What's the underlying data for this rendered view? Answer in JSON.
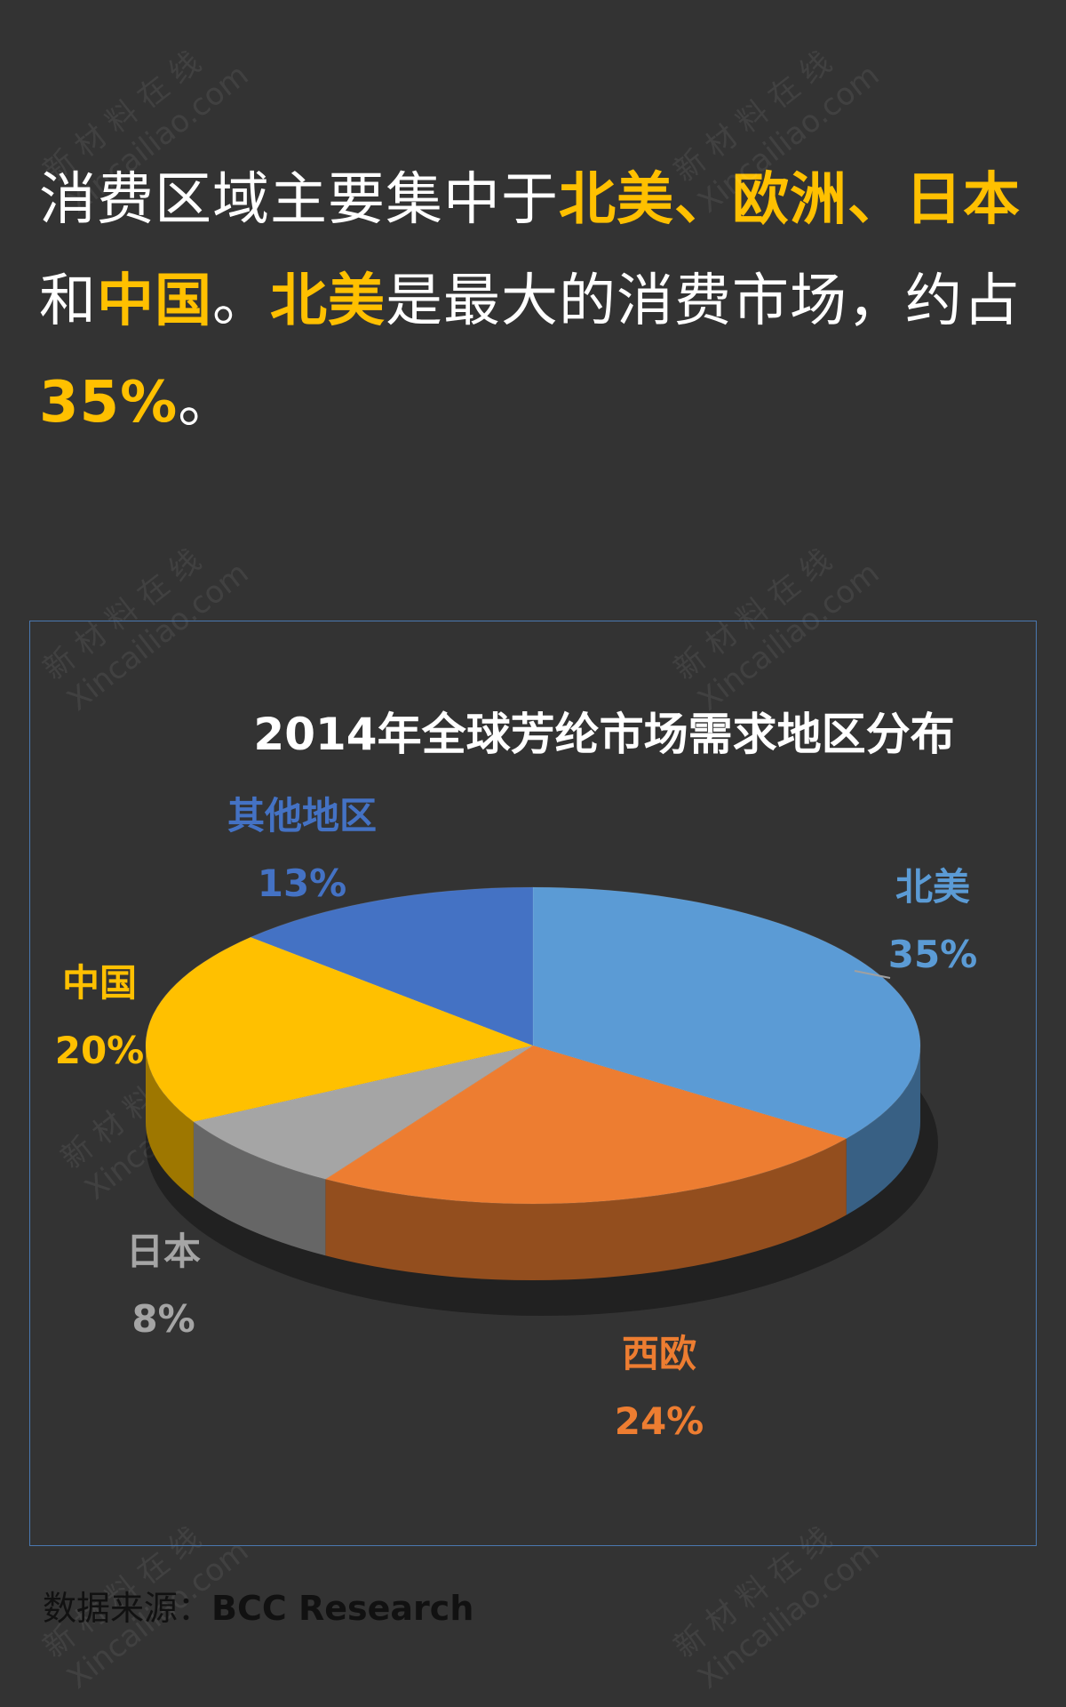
{
  "headline": {
    "seg1": "消费区域主要集中于",
    "seg2": "北美、欧洲、日本",
    "seg3": "和",
    "seg4": "中国",
    "seg5": "。",
    "seg6": "北美",
    "seg7": "是最大的消费市场，约占",
    "seg8": "35%",
    "seg9": "。"
  },
  "watermark": {
    "line1": "新 材 料 在 线",
    "line2": "Xincailiao.com"
  },
  "source": {
    "label": "数据来源：",
    "value": "BCC Research"
  },
  "chart_data": {
    "type": "pie",
    "title": "2014年全球芳纶市场需求地区分布",
    "slices": [
      {
        "name": "北美",
        "value": 35,
        "label": "35%",
        "color": "#5b9bd5"
      },
      {
        "name": "西欧",
        "value": 24,
        "label": "24%",
        "color": "#ed7d31"
      },
      {
        "name": "日本",
        "value": 8,
        "label": "8%",
        "color": "#a5a5a5"
      },
      {
        "name": "中国",
        "value": 20,
        "label": "20%",
        "color": "#ffc000"
      },
      {
        "name": "其他地区",
        "value": 13,
        "label": "13%",
        "color": "#4472c4"
      }
    ],
    "style": "3d-pie",
    "start": "12 o'clock, clockwise",
    "legend": "none (data labels outside slices)"
  }
}
